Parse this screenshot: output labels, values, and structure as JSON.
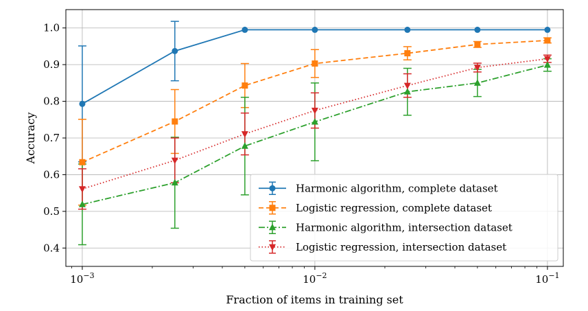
{
  "chart_data": {
    "type": "line",
    "xlabel": "Fraction of items in training set",
    "ylabel": "Accuracy",
    "xscale": "log",
    "xlim": [
      0.00085,
      0.117
    ],
    "ylim": [
      0.35,
      1.05
    ],
    "x_ticks": [
      {
        "value": 0.001,
        "base": "10",
        "exp": "−3"
      },
      {
        "value": 0.01,
        "base": "10",
        "exp": "−2"
      },
      {
        "value": 0.1,
        "base": "10",
        "exp": "−1"
      }
    ],
    "y_ticks": [
      {
        "value": 0.4,
        "label": "0.4"
      },
      {
        "value": 0.5,
        "label": "0.5"
      },
      {
        "value": 0.6,
        "label": "0.6"
      },
      {
        "value": 0.7,
        "label": "0.7"
      },
      {
        "value": 0.8,
        "label": "0.8"
      },
      {
        "value": 0.9,
        "label": "0.9"
      },
      {
        "value": 1.0,
        "label": "1.0"
      }
    ],
    "grid": true,
    "legend_position": "lower-right",
    "x": [
      0.001,
      0.0025,
      0.005,
      0.01,
      0.025,
      0.05,
      0.1
    ],
    "series": [
      {
        "name": "Harmonic algorithm, complete dataset",
        "color": "#1f77b4",
        "linestyle": "solid",
        "marker": "circle",
        "values": [
          0.793,
          0.937,
          0.995,
          0.995,
          0.995,
          0.995,
          0.995
        ],
        "errors": [
          0.158,
          0.081,
          0.0,
          0.0,
          0.0,
          0.0,
          0.0
        ]
      },
      {
        "name": "Logistic regression, complete dataset",
        "color": "#ff7f0e",
        "linestyle": "dashed",
        "marker": "square",
        "values": [
          0.634,
          0.745,
          0.843,
          0.903,
          0.931,
          0.955,
          0.966
        ],
        "errors": [
          0.117,
          0.087,
          0.06,
          0.038,
          0.018,
          0.008,
          0.007
        ]
      },
      {
        "name": "Harmonic algorithm, intersection dataset",
        "color": "#2ca02c",
        "linestyle": "dashdot",
        "marker": "triangle-up",
        "values": [
          0.519,
          0.578,
          0.678,
          0.744,
          0.826,
          0.85,
          0.899
        ],
        "errors": [
          0.11,
          0.124,
          0.133,
          0.106,
          0.064,
          0.037,
          0.017
        ]
      },
      {
        "name": "Logistic regression, intersection dataset",
        "color": "#d62728",
        "linestyle": "dotted",
        "marker": "triangle-down",
        "values": [
          0.561,
          0.639,
          0.711,
          0.775,
          0.843,
          0.892,
          0.916
        ],
        "errors": [
          0.055,
          0.061,
          0.057,
          0.048,
          0.032,
          0.012,
          0.01
        ]
      }
    ]
  }
}
